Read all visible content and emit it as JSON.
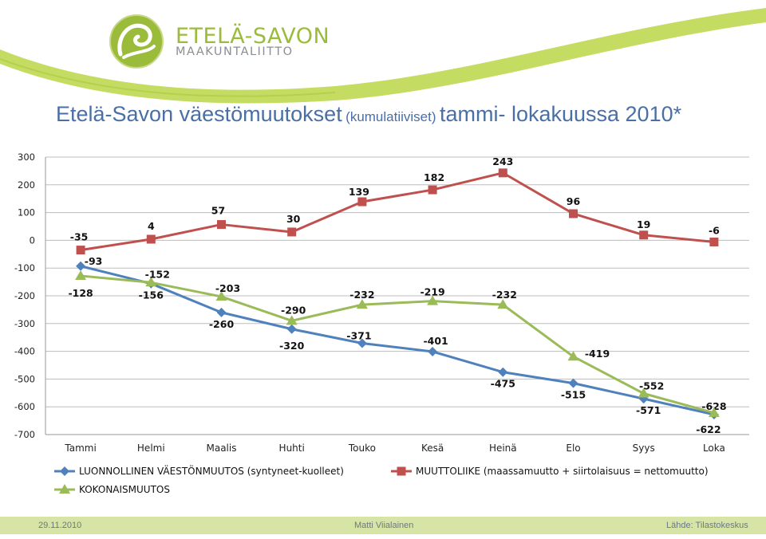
{
  "brand": {
    "logo_line1": "ETELÄ-SAVON",
    "logo_line2": "MAAKUNTALIITTO",
    "logo_icon": "leaf-swirl-logo",
    "accent_green": "#9bbb3b",
    "swoosh_green": "#c5dc63"
  },
  "title": {
    "main": "Etelä-Savon väestömuutokset",
    "paren": "(kumulatiiviset)",
    "rest": "tammi- lokakuussa 2010*"
  },
  "chart_data": {
    "type": "line",
    "categories": [
      "Tammi",
      "Helmi",
      "Maalis",
      "Huhti",
      "Touko",
      "Kesä",
      "Heinä",
      "Elo",
      "Syys",
      "Loka"
    ],
    "ylim": [
      -700,
      300
    ],
    "yticks": [
      300,
      200,
      100,
      0,
      -100,
      -200,
      -300,
      -400,
      -500,
      -600,
      -700
    ],
    "grid": true,
    "legend_position": "bottom",
    "series": [
      {
        "name": "LUONNOLLINEN VÄESTÖNMUUTOS (syntyneet-kuolleet)",
        "color": "#4f81bd",
        "marker": "diamond",
        "values": [
          -93,
          -156,
          -260,
          -320,
          -371,
          -401,
          -475,
          -515,
          -571,
          -628
        ]
      },
      {
        "name": "MUUTTOLIIKE (maassamuutto + siirtolaisuus = nettomuutto)",
        "color": "#c0504d",
        "marker": "square",
        "values": [
          -35,
          4,
          57,
          30,
          139,
          182,
          243,
          96,
          19,
          -6
        ]
      },
      {
        "name": "KOKONAISMUUTOS",
        "color": "#9bbb59",
        "marker": "triangle",
        "values": [
          -128,
          -152,
          -203,
          -290,
          -232,
          -219,
          -232,
          -419,
          -552,
          -622
        ]
      }
    ]
  },
  "footer": {
    "date": "29.11.2010",
    "author": "Matti Viialainen",
    "source": "Lähde: Tilastokeskus"
  }
}
